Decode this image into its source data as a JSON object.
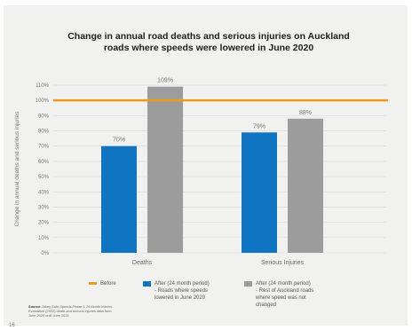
{
  "chart_data": {
    "type": "bar",
    "title_line1": "Change in annual road deaths and serious injuries on Auckland",
    "title_line2": "roads where speeds were lowered in June 2020",
    "ylabel": "Change in annual deaths and serious injuries",
    "ylim": [
      0,
      110
    ],
    "yticks": [
      "0%",
      "10%",
      "20%",
      "30%",
      "40%",
      "50%",
      "60%",
      "70%",
      "80%",
      "90%",
      "100%",
      "110%"
    ],
    "grid": true,
    "categories": [
      "Deaths",
      "Serious Injuries"
    ],
    "series": [
      {
        "name": "After (24 month period) - Roads where speeds lowered in June 2020",
        "color": "#0f75c2",
        "values": [
          70,
          79
        ],
        "labels": [
          "70%",
          "79%"
        ]
      },
      {
        "name": "After (24 month period) - Rest of Auckland roads where speed was not changed",
        "color": "#9c9c9c",
        "values": [
          109,
          88
        ],
        "labels": [
          "109%",
          "88%"
        ]
      }
    ],
    "reference": {
      "name": "Before",
      "value": 100,
      "color": "#f39a1e"
    }
  },
  "legend": [
    {
      "label": "Before",
      "color": "#f39a1e",
      "kind": "line"
    },
    {
      "label": "After (24 month period) - Roads where speeds lowered in June 2020",
      "lines": [
        "After (24 month period)",
        "- Roads where speeds",
        "lowered in June 2020"
      ],
      "color": "#0f75c2",
      "kind": "box"
    },
    {
      "label": "After (24 month period) - Rest of Auckland roads where speed was not changed",
      "lines": [
        "After (24 month period)",
        "- Rest of Auckland roads",
        "where speed was not",
        "changed"
      ],
      "color": "#9c9c9c",
      "kind": "box"
    }
  ],
  "source": {
    "heading": "Source:",
    "text": "Atkey Safe Speeds Phase 1 24 Month Interim Evaluation (2022) death and serious injuries data from June 2020 until June 2022"
  },
  "page_number": "16"
}
